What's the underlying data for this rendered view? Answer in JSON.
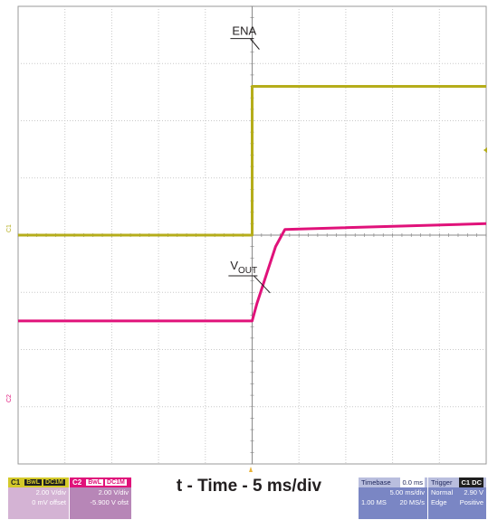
{
  "chart_data": {
    "type": "line",
    "title": "",
    "xlabel": "t - Time - 5 ms/div",
    "x_unit": "ms",
    "xlim": [
      -25,
      25
    ],
    "divisions": {
      "x": 10,
      "y": 8
    },
    "grid": true,
    "series": [
      {
        "name": "ENA",
        "channel": "C1",
        "color": "#b5ad1b",
        "scale_v_per_div": 2.0,
        "x": [
          -25,
          0,
          0,
          25
        ],
        "y_div": [
          0,
          0,
          2.6,
          2.6
        ]
      },
      {
        "name": "VOUT",
        "channel": "C2",
        "color": "#e0127a",
        "scale_v_per_div": 2.0,
        "x": [
          -25,
          0,
          0.5,
          1.5,
          2.5,
          3.5,
          25
        ],
        "y_div": [
          -1.5,
          -1.5,
          -1.2,
          -0.7,
          -0.2,
          0.1,
          0.2
        ]
      }
    ],
    "annotations": [
      {
        "text": "ENA",
        "target": "ENA",
        "x": -0.2,
        "y_div": 3.5
      },
      {
        "text": "V",
        "sub": "OUT",
        "target": "VOUT",
        "x": -0.4,
        "y_div": -0.6
      }
    ]
  },
  "channels": [
    {
      "id": "C1",
      "tags": [
        "BwL",
        "DC1M"
      ],
      "scale": "2.00 V/div",
      "offset": "0 mV offset",
      "color": "#b5ad1b",
      "body_color": "#d4b3d4"
    },
    {
      "id": "C2",
      "tags": [
        "BwL",
        "DC1M"
      ],
      "scale": "2.00 V/div",
      "offset": "-5.900 V ofst",
      "color": "#e0127a",
      "body_color": "#b786b7"
    }
  ],
  "markers": {
    "c1": "C1",
    "c2": "C2"
  },
  "timebase": {
    "label": "Timebase",
    "delay": "0.0 ms",
    "rate": "5.00 ms/div",
    "samples": "1.00 MS",
    "sample_rate": "20 MS/s"
  },
  "trigger": {
    "label": "Trigger",
    "channels": "C1 DC",
    "mode": "Normal",
    "level": "2.90 V",
    "type": "Edge",
    "slope": "Positive"
  }
}
